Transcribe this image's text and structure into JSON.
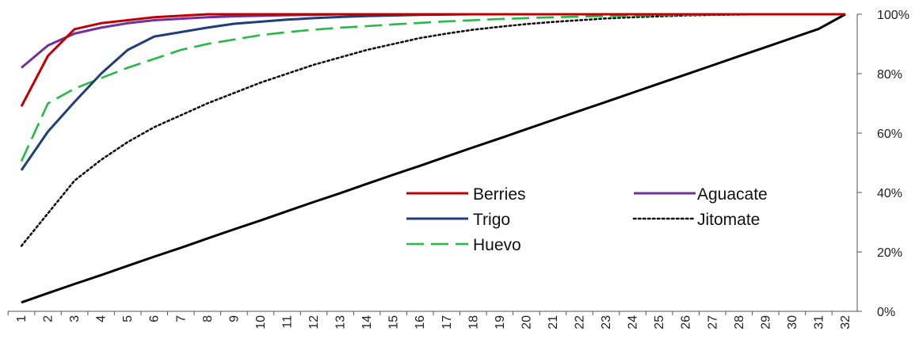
{
  "chart_data": {
    "type": "line",
    "title": "",
    "xlabel": "",
    "ylabel": "",
    "x": [
      1,
      2,
      3,
      4,
      5,
      6,
      7,
      8,
      9,
      10,
      11,
      12,
      13,
      14,
      15,
      16,
      17,
      18,
      19,
      20,
      21,
      22,
      23,
      24,
      25,
      26,
      27,
      28,
      29,
      30,
      31,
      32
    ],
    "ylim": [
      0,
      100
    ],
    "y_ticks": [
      "0%",
      "20%",
      "40%",
      "60%",
      "80%",
      "100%"
    ],
    "y_axis_position": "right",
    "grid": false,
    "legend_position": "center",
    "series": [
      {
        "name": "Berries",
        "color": "#c00000",
        "style": "solid",
        "values": [
          69,
          86,
          95,
          97,
          98,
          99,
          99.5,
          100,
          100,
          100,
          100,
          100,
          100,
          100,
          100,
          100,
          100,
          100,
          100,
          100,
          100,
          100,
          100,
          100,
          100,
          100,
          100,
          100,
          100,
          100,
          100,
          100
        ]
      },
      {
        "name": "Aguacate",
        "color": "#7030a0",
        "style": "solid",
        "values": [
          82,
          89.5,
          93.5,
          95.5,
          97,
          98,
          98.5,
          99,
          99.3,
          99.5,
          99.7,
          99.8,
          100,
          100,
          100,
          100,
          100,
          100,
          100,
          100,
          100,
          100,
          100,
          100,
          100,
          100,
          100,
          100,
          100,
          100,
          100,
          100
        ]
      },
      {
        "name": "Trigo",
        "color": "#1f3f7a",
        "style": "solid",
        "values": [
          47.5,
          60.5,
          70.5,
          80,
          88,
          92.5,
          94,
          95.5,
          96.8,
          97.5,
          98.2,
          98.7,
          99.1,
          99.4,
          99.6,
          99.8,
          99.9,
          100,
          100,
          100,
          100,
          100,
          100,
          100,
          100,
          100,
          100,
          100,
          100,
          100,
          100,
          100
        ]
      },
      {
        "name": "Jitomate",
        "color": "#111111",
        "style": "dotted",
        "values": [
          22,
          33,
          44,
          51,
          57,
          62,
          66,
          70,
          73.5,
          77,
          80,
          83,
          85.5,
          88,
          90,
          92,
          93.5,
          94.8,
          95.8,
          96.7,
          97.4,
          98,
          98.6,
          99,
          99.3,
          99.6,
          99.8,
          99.9,
          100,
          100,
          100,
          100
        ]
      },
      {
        "name": "Huevo",
        "color": "#22bb44",
        "style": "dashed",
        "values": [
          50.5,
          70,
          75,
          78.5,
          82,
          85,
          88,
          90,
          91.5,
          93,
          94,
          94.8,
          95.5,
          96,
          96.6,
          97.1,
          97.6,
          98,
          98.4,
          98.7,
          99,
          99.2,
          99.4,
          99.6,
          99.7,
          99.8,
          99.9,
          100,
          100,
          100,
          100,
          100
        ]
      },
      {
        "name": "",
        "color": "#000000",
        "style": "solid",
        "values": [
          3,
          6.1,
          9.2,
          12.2,
          15.3,
          18.4,
          21.4,
          24.5,
          27.6,
          30.6,
          33.7,
          36.8,
          39.8,
          42.9,
          46,
          49,
          52.1,
          55.2,
          58.2,
          61.3,
          64.4,
          67.5,
          70.5,
          73.6,
          76.7,
          79.7,
          82.8,
          85.9,
          88.9,
          92,
          95.1,
          100
        ]
      }
    ]
  }
}
